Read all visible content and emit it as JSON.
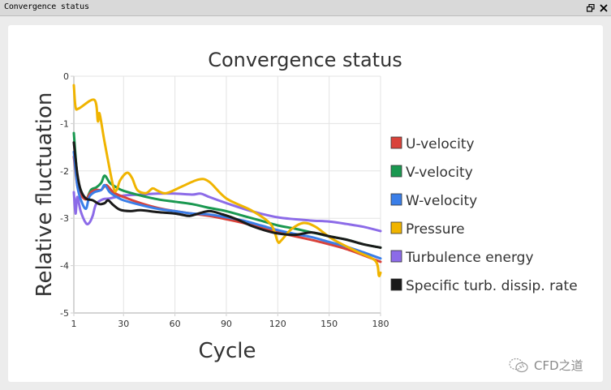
{
  "window": {
    "title": "Convergence status",
    "restore_icon": "⧉",
    "close_icon": "✕"
  },
  "watermark": {
    "icon": "wechat-icon",
    "text": "CFD之道"
  },
  "chart_data": {
    "type": "line",
    "title": "Convergence status",
    "xlabel": "Cycle",
    "ylabel": "Relative fluctuation",
    "xlim": [
      1,
      180
    ],
    "ylim": [
      -5,
      0
    ],
    "xticks": [
      1,
      30,
      60,
      90,
      120,
      150,
      180
    ],
    "yticks": [
      0,
      -1,
      -2,
      -3,
      -4,
      -5
    ],
    "grid": true,
    "legend": "right",
    "series": [
      {
        "name": "U-velocity",
        "color": "#d9423a",
        "points": [
          [
            1,
            -1.7
          ],
          [
            3,
            -2.3
          ],
          [
            5,
            -2.5
          ],
          [
            8,
            -2.6
          ],
          [
            11,
            -2.45
          ],
          [
            14,
            -2.4
          ],
          [
            17,
            -2.4
          ],
          [
            20,
            -2.3
          ],
          [
            24,
            -2.45
          ],
          [
            30,
            -2.55
          ],
          [
            40,
            -2.68
          ],
          [
            50,
            -2.78
          ],
          [
            60,
            -2.85
          ],
          [
            70,
            -2.9
          ],
          [
            80,
            -2.95
          ],
          [
            90,
            -3.02
          ],
          [
            100,
            -3.1
          ],
          [
            110,
            -3.2
          ],
          [
            120,
            -3.3
          ],
          [
            130,
            -3.38
          ],
          [
            140,
            -3.46
          ],
          [
            150,
            -3.55
          ],
          [
            160,
            -3.65
          ],
          [
            170,
            -3.78
          ],
          [
            180,
            -3.92
          ]
        ]
      },
      {
        "name": "V-velocity",
        "color": "#1a9850",
        "points": [
          [
            1,
            -1.2
          ],
          [
            3,
            -2.1
          ],
          [
            5,
            -2.4
          ],
          [
            8,
            -2.6
          ],
          [
            11,
            -2.4
          ],
          [
            14,
            -2.35
          ],
          [
            17,
            -2.25
          ],
          [
            19,
            -2.1
          ],
          [
            22,
            -2.25
          ],
          [
            26,
            -2.35
          ],
          [
            30,
            -2.42
          ],
          [
            40,
            -2.52
          ],
          [
            50,
            -2.6
          ],
          [
            60,
            -2.65
          ],
          [
            70,
            -2.7
          ],
          [
            80,
            -2.78
          ],
          [
            90,
            -2.85
          ],
          [
            100,
            -2.95
          ],
          [
            110,
            -3.05
          ],
          [
            120,
            -3.15
          ],
          [
            130,
            -3.22
          ],
          [
            140,
            -3.3
          ],
          [
            150,
            -3.38
          ],
          [
            160,
            -3.45
          ],
          [
            170,
            -3.55
          ],
          [
            180,
            -3.62
          ]
        ]
      },
      {
        "name": "W-velocity",
        "color": "#3a7ee8",
        "points": [
          [
            1,
            -1.6
          ],
          [
            3,
            -2.3
          ],
          [
            5,
            -2.6
          ],
          [
            8,
            -2.8
          ],
          [
            10,
            -2.55
          ],
          [
            13,
            -2.45
          ],
          [
            17,
            -2.4
          ],
          [
            19,
            -2.3
          ],
          [
            22,
            -2.45
          ],
          [
            26,
            -2.55
          ],
          [
            30,
            -2.62
          ],
          [
            40,
            -2.72
          ],
          [
            50,
            -2.8
          ],
          [
            60,
            -2.85
          ],
          [
            70,
            -2.9
          ],
          [
            80,
            -2.92
          ],
          [
            90,
            -2.98
          ],
          [
            100,
            -3.05
          ],
          [
            110,
            -3.15
          ],
          [
            120,
            -3.25
          ],
          [
            130,
            -3.33
          ],
          [
            140,
            -3.4
          ],
          [
            150,
            -3.5
          ],
          [
            160,
            -3.6
          ],
          [
            170,
            -3.72
          ],
          [
            180,
            -3.85
          ]
        ]
      },
      {
        "name": "Pressure",
        "color": "#f0b400",
        "points": [
          [
            1,
            -0.19
          ],
          [
            2,
            -0.65
          ],
          [
            4,
            -0.68
          ],
          [
            13,
            -0.5
          ],
          [
            15,
            -0.95
          ],
          [
            16,
            -0.79
          ],
          [
            19,
            -1.4
          ],
          [
            24,
            -2.33
          ],
          [
            26,
            -2.4
          ],
          [
            28,
            -2.2
          ],
          [
            32,
            -2.04
          ],
          [
            35,
            -2.15
          ],
          [
            38,
            -2.4
          ],
          [
            43,
            -2.47
          ],
          [
            47,
            -2.37
          ],
          [
            50,
            -2.42
          ],
          [
            55,
            -2.47
          ],
          [
            64,
            -2.33
          ],
          [
            74,
            -2.18
          ],
          [
            80,
            -2.23
          ],
          [
            90,
            -2.58
          ],
          [
            105,
            -2.84
          ],
          [
            116,
            -3.13
          ],
          [
            120,
            -3.49
          ],
          [
            122,
            -3.47
          ],
          [
            128,
            -3.23
          ],
          [
            135,
            -3.1
          ],
          [
            142,
            -3.18
          ],
          [
            152,
            -3.44
          ],
          [
            166,
            -3.7
          ],
          [
            177,
            -3.9
          ],
          [
            179,
            -4.21
          ],
          [
            180,
            -4.15
          ]
        ]
      },
      {
        "name": "Turbulence energy",
        "color": "#8c6be8",
        "points": [
          [
            1,
            -2.45
          ],
          [
            2,
            -2.9
          ],
          [
            3,
            -2.55
          ],
          [
            5,
            -2.85
          ],
          [
            8,
            -3.1
          ],
          [
            10,
            -3.1
          ],
          [
            12,
            -2.95
          ],
          [
            14,
            -2.7
          ],
          [
            18,
            -2.6
          ],
          [
            22,
            -2.58
          ],
          [
            30,
            -2.52
          ],
          [
            40,
            -2.5
          ],
          [
            50,
            -2.48
          ],
          [
            60,
            -2.48
          ],
          [
            70,
            -2.5
          ],
          [
            75,
            -2.48
          ],
          [
            80,
            -2.55
          ],
          [
            90,
            -2.68
          ],
          [
            100,
            -2.8
          ],
          [
            110,
            -2.9
          ],
          [
            120,
            -2.98
          ],
          [
            130,
            -3.02
          ],
          [
            140,
            -3.05
          ],
          [
            150,
            -3.07
          ],
          [
            160,
            -3.12
          ],
          [
            170,
            -3.18
          ],
          [
            180,
            -3.27
          ]
        ]
      },
      {
        "name": "Specific turb. dissip. rate",
        "color": "#1a1a1a",
        "points": [
          [
            1,
            -1.4
          ],
          [
            3,
            -2.05
          ],
          [
            5,
            -2.4
          ],
          [
            8,
            -2.58
          ],
          [
            12,
            -2.62
          ],
          [
            16,
            -2.7
          ],
          [
            19,
            -2.68
          ],
          [
            21,
            -2.62
          ],
          [
            24,
            -2.72
          ],
          [
            28,
            -2.82
          ],
          [
            34,
            -2.85
          ],
          [
            40,
            -2.83
          ],
          [
            50,
            -2.87
          ],
          [
            60,
            -2.9
          ],
          [
            68,
            -2.95
          ],
          [
            72,
            -2.92
          ],
          [
            80,
            -2.85
          ],
          [
            88,
            -2.92
          ],
          [
            96,
            -3.02
          ],
          [
            104,
            -3.15
          ],
          [
            112,
            -3.25
          ],
          [
            120,
            -3.32
          ],
          [
            130,
            -3.35
          ],
          [
            140,
            -3.3
          ],
          [
            150,
            -3.38
          ],
          [
            160,
            -3.45
          ],
          [
            170,
            -3.55
          ],
          [
            180,
            -3.62
          ]
        ]
      }
    ]
  }
}
